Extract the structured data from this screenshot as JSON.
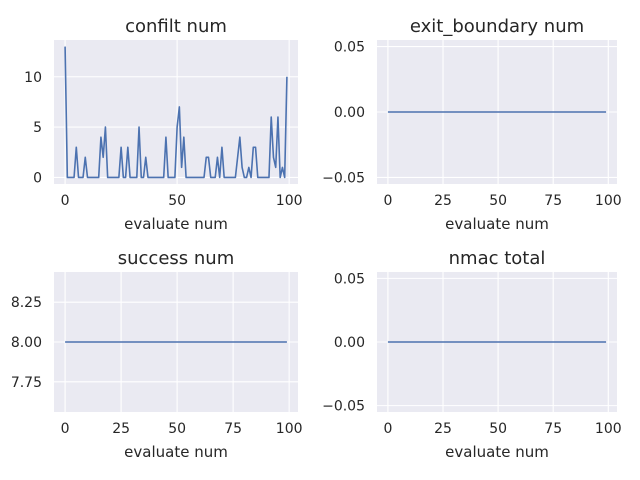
{
  "chart_data": [
    {
      "type": "line",
      "title": "confilt num",
      "xlabel": "evaluate num",
      "ylabel": "",
      "xlim": [
        -4.95,
        103.95
      ],
      "ylim": [
        -0.65,
        13.65
      ],
      "xticks": [
        0,
        50,
        100
      ],
      "xtick_labels": [
        "0",
        "50",
        "100"
      ],
      "yticks": [
        0,
        5,
        10
      ],
      "ytick_labels": [
        "0",
        "5",
        "10"
      ],
      "grid": true,
      "color": "#4c72b0",
      "series": [
        {
          "x": [
            0,
            1,
            2,
            3,
            4,
            5,
            6,
            7,
            8,
            9,
            10,
            11,
            12,
            13,
            14,
            15,
            16,
            17,
            18,
            19,
            20,
            21,
            22,
            23,
            24,
            25,
            26,
            27,
            28,
            29,
            30,
            31,
            32,
            33,
            34,
            35,
            36,
            37,
            38,
            39,
            40,
            41,
            42,
            43,
            44,
            45,
            46,
            47,
            48,
            49,
            50,
            51,
            52,
            53,
            54,
            55,
            56,
            57,
            58,
            59,
            60,
            61,
            62,
            63,
            64,
            65,
            66,
            67,
            68,
            69,
            70,
            71,
            72,
            73,
            74,
            75,
            76,
            77,
            78,
            79,
            80,
            81,
            82,
            83,
            84,
            85,
            86,
            87,
            88,
            89,
            90,
            91,
            92,
            93,
            94,
            95,
            96,
            97,
            98,
            99
          ],
          "y": [
            13,
            0,
            0,
            0,
            0,
            3,
            0,
            0,
            0,
            2,
            0,
            0,
            0,
            0,
            0,
            0,
            4,
            2,
            5,
            0,
            0,
            0,
            0,
            0,
            0,
            3,
            0,
            0,
            3,
            0,
            0,
            0,
            0,
            5,
            0,
            0,
            2,
            0,
            0,
            0,
            0,
            0,
            0,
            0,
            0,
            4,
            0,
            0,
            0,
            0,
            5,
            7,
            1,
            4,
            0,
            0,
            0,
            0,
            0,
            0,
            0,
            0,
            0,
            2,
            2,
            0,
            0,
            0,
            2,
            0,
            3,
            0,
            0,
            0,
            0,
            0,
            0,
            2,
            4,
            1,
            0,
            0,
            1,
            0,
            3,
            3,
            0,
            0,
            0,
            0,
            0,
            0,
            6,
            2,
            1,
            6,
            0,
            1,
            0,
            10
          ]
        }
      ]
    },
    {
      "type": "line",
      "title": "exit_boundary num",
      "xlabel": "evaluate num",
      "ylabel": "",
      "xlim": [
        -4.95,
        103.95
      ],
      "ylim": [
        -0.055,
        0.055
      ],
      "xticks": [
        0,
        25,
        50,
        75,
        100
      ],
      "xtick_labels": [
        "0",
        "25",
        "50",
        "75",
        "100"
      ],
      "yticks": [
        -0.05,
        0,
        0.05
      ],
      "ytick_labels": [
        "−0.05",
        "0.00",
        "0.05"
      ],
      "grid": true,
      "color": "#4c72b0",
      "series": [
        {
          "x": [
            0,
            99
          ],
          "y": [
            0,
            0
          ]
        }
      ]
    },
    {
      "type": "line",
      "title": "success num",
      "xlabel": "evaluate num",
      "ylabel": "",
      "xlim": [
        -4.95,
        103.95
      ],
      "ylim": [
        7.56,
        8.44
      ],
      "xticks": [
        0,
        25,
        50,
        75,
        100
      ],
      "xtick_labels": [
        "0",
        "25",
        "50",
        "75",
        "100"
      ],
      "yticks": [
        7.75,
        8.0,
        8.25
      ],
      "ytick_labels": [
        "7.75",
        "8.00",
        "8.25"
      ],
      "grid": true,
      "color": "#4c72b0",
      "series": [
        {
          "x": [
            0,
            99
          ],
          "y": [
            8,
            8
          ]
        }
      ]
    },
    {
      "type": "line",
      "title": "nmac total",
      "xlabel": "evaluate num",
      "ylabel": "",
      "xlim": [
        -4.95,
        103.95
      ],
      "ylim": [
        -0.055,
        0.055
      ],
      "xticks": [
        0,
        25,
        50,
        75,
        100
      ],
      "xtick_labels": [
        "0",
        "25",
        "50",
        "75",
        "100"
      ],
      "yticks": [
        -0.05,
        0,
        0.05
      ],
      "ytick_labels": [
        "−0.05",
        "0.00",
        "0.05"
      ],
      "grid": true,
      "color": "#4c72b0",
      "series": [
        {
          "x": [
            0,
            99
          ],
          "y": [
            0,
            0
          ]
        }
      ]
    }
  ]
}
